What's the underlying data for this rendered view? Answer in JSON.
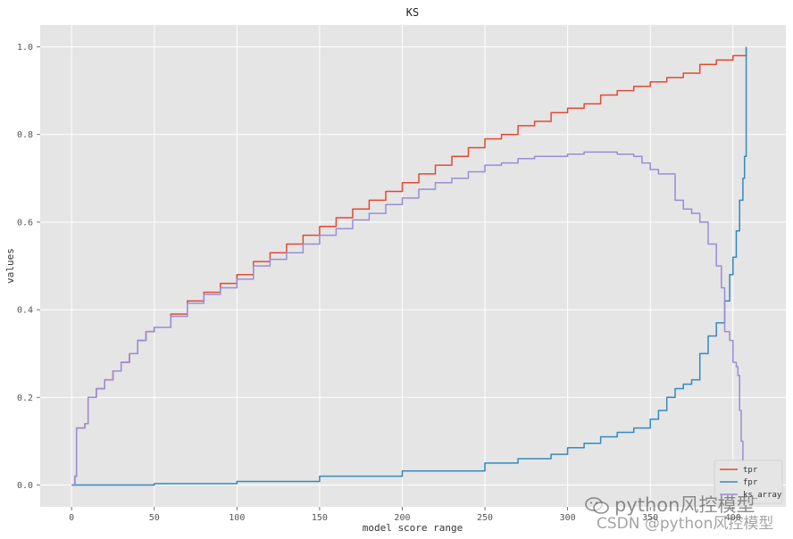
{
  "chart_data": {
    "type": "line",
    "title": "KS",
    "xlabel": "model score range",
    "ylabel": "values",
    "xlim": [
      -19,
      432
    ],
    "ylim": [
      -0.05,
      1.05
    ],
    "xticks": [
      0,
      50,
      100,
      150,
      200,
      250,
      300,
      350,
      400
    ],
    "yticks": [
      0.0,
      0.2,
      0.4,
      0.6,
      0.8,
      1.0
    ],
    "grid": true,
    "legend_position": "bottom-right",
    "series": [
      {
        "name": "tpr",
        "color": "#E24A33",
        "x": [
          0,
          2,
          3,
          4,
          8,
          10,
          15,
          20,
          25,
          30,
          35,
          40,
          45,
          50,
          60,
          70,
          80,
          90,
          100,
          110,
          120,
          130,
          140,
          150,
          160,
          170,
          180,
          190,
          200,
          210,
          220,
          230,
          240,
          250,
          260,
          270,
          280,
          290,
          300,
          310,
          320,
          330,
          340,
          350,
          360,
          370,
          380,
          390,
          400,
          408
        ],
        "y": [
          0.0,
          0.02,
          0.13,
          0.13,
          0.14,
          0.2,
          0.22,
          0.24,
          0.26,
          0.28,
          0.3,
          0.33,
          0.35,
          0.36,
          0.39,
          0.42,
          0.44,
          0.46,
          0.48,
          0.51,
          0.53,
          0.55,
          0.57,
          0.59,
          0.61,
          0.63,
          0.65,
          0.67,
          0.69,
          0.71,
          0.73,
          0.75,
          0.77,
          0.79,
          0.8,
          0.82,
          0.83,
          0.85,
          0.86,
          0.87,
          0.89,
          0.9,
          0.91,
          0.92,
          0.93,
          0.94,
          0.96,
          0.97,
          0.98,
          1.0
        ]
      },
      {
        "name": "fpr",
        "color": "#348ABD",
        "x": [
          0,
          50,
          100,
          150,
          200,
          250,
          270,
          290,
          300,
          310,
          320,
          330,
          340,
          350,
          355,
          360,
          365,
          370,
          375,
          380,
          385,
          390,
          395,
          398,
          400,
          402,
          404,
          406,
          407,
          408
        ],
        "y": [
          0.0,
          0.003,
          0.008,
          0.02,
          0.032,
          0.05,
          0.06,
          0.07,
          0.085,
          0.095,
          0.11,
          0.12,
          0.13,
          0.15,
          0.17,
          0.2,
          0.22,
          0.23,
          0.24,
          0.3,
          0.34,
          0.37,
          0.42,
          0.48,
          0.52,
          0.58,
          0.65,
          0.7,
          0.75,
          1.0
        ]
      },
      {
        "name": "ks_array",
        "color": "#988ED5",
        "x": [
          0,
          2,
          3,
          4,
          8,
          10,
          15,
          20,
          25,
          30,
          35,
          40,
          45,
          50,
          60,
          70,
          80,
          90,
          100,
          110,
          120,
          130,
          140,
          150,
          160,
          170,
          180,
          190,
          200,
          210,
          220,
          230,
          240,
          250,
          260,
          270,
          280,
          290,
          300,
          310,
          320,
          330,
          340,
          345,
          350,
          355,
          360,
          365,
          370,
          375,
          380,
          385,
          390,
          393,
          395,
          398,
          400,
          402,
          403,
          404,
          405,
          406,
          407,
          408
        ],
        "y": [
          0.0,
          0.02,
          0.13,
          0.13,
          0.14,
          0.2,
          0.22,
          0.24,
          0.26,
          0.28,
          0.3,
          0.33,
          0.35,
          0.36,
          0.385,
          0.415,
          0.435,
          0.45,
          0.47,
          0.5,
          0.515,
          0.53,
          0.55,
          0.57,
          0.585,
          0.605,
          0.62,
          0.64,
          0.655,
          0.675,
          0.69,
          0.7,
          0.715,
          0.73,
          0.735,
          0.745,
          0.75,
          0.75,
          0.755,
          0.76,
          0.76,
          0.755,
          0.75,
          0.735,
          0.72,
          0.71,
          0.71,
          0.65,
          0.63,
          0.62,
          0.6,
          0.55,
          0.5,
          0.45,
          0.35,
          0.33,
          0.28,
          0.27,
          0.25,
          0.17,
          0.1,
          0.05,
          0.02,
          0.0
        ]
      }
    ]
  },
  "watermark": {
    "line1": "python风控模型",
    "line2": "CSDN @python风控模型",
    "icon": "wechat-icon"
  }
}
